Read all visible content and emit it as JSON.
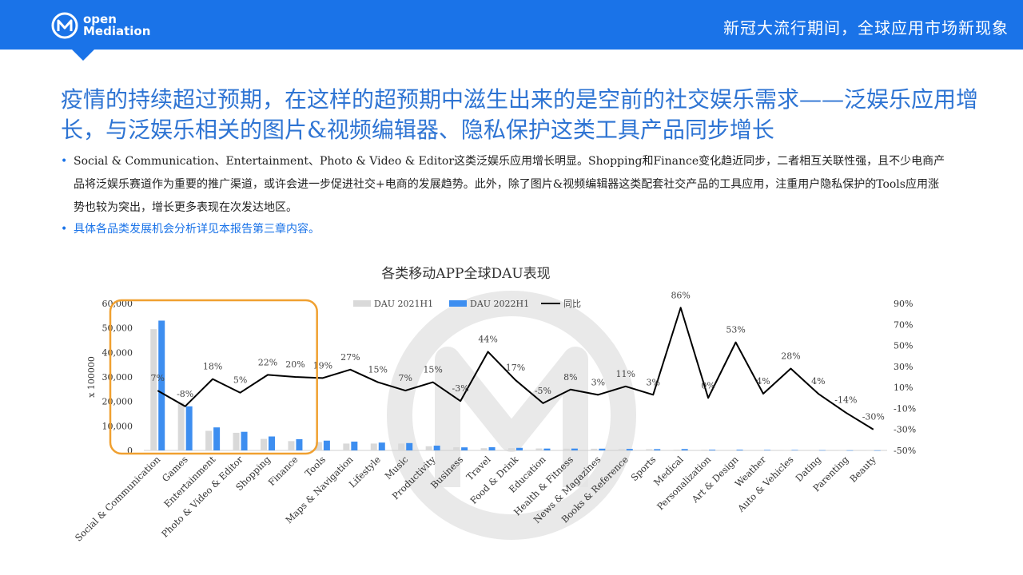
{
  "header": {
    "logo_line1": "open",
    "logo_line2": "Mediation",
    "title": "新冠大流行期间，全球应用市场新现象"
  },
  "headline": "疫情的持续超过预期，在这样的超预期中滋生出来的是空前的社交娱乐需求——泛娱乐应用增长，与泛娱乐相关的图片&视频编辑器、隐私保护这类工具产品同步增长",
  "bullets": [
    "Social & Communication、Entertainment、Photo & Video & Editor这类泛娱乐应用增长明显。Shopping和Finance变化趋近同步，二者相互关联性强，且不少电商产品将泛娱乐赛道作为重要的推广渠道，或许会进一步促进社交+电商的发展趋势。此外，除了图片&视频编辑器这类配套社交产品的工具应用，注重用户隐私保护的Tools应用涨势也较为突出，增长更多表现在次发达地区。",
    "具体各品类发展机会分析详见本报告第三章内容。"
  ],
  "colors": {
    "brand": "#1a73e8",
    "headline": "#2e74d3",
    "series_2021": "#d9d9d9",
    "series_2022": "#3d8ef0",
    "yoy_line": "#000000",
    "highlight_box": "#f0a030"
  },
  "chart_data": {
    "type": "bar",
    "title": "各类移动APP全球DAU表现",
    "ylabel": "x 100000",
    "ylim": [
      0,
      60000
    ],
    "y_ticks": [
      "0",
      "10,000",
      "20,000",
      "30,000",
      "40,000",
      "50,000",
      "60,000"
    ],
    "y2lim": [
      -50,
      90
    ],
    "y2_ticks": [
      "-50%",
      "-30%",
      "-10%",
      "10%",
      "30%",
      "50%",
      "70%",
      "90%"
    ],
    "legend_position": "top",
    "categories": [
      "Social & Communication",
      "Games",
      "Entertainment",
      "Photo & Video & Editor",
      "Shopping",
      "Finance",
      "Tools",
      "Maps & Navigation",
      "Lifestyle",
      "Music",
      "Productivity",
      "Business",
      "Travel",
      "Food & Drink",
      "Education",
      "Health & Fitness",
      "News & Magazines",
      "Books & Reference",
      "Sports",
      "Medical",
      "Personalization",
      "Art & Design",
      "Weather",
      "Auto & Vehicles",
      "Dating",
      "Parenting",
      "Beauty"
    ],
    "series": [
      {
        "name": "DAU 2021H1",
        "kind": "bar",
        "values": [
          49500,
          19500,
          8000,
          7200,
          4700,
          3800,
          3400,
          2800,
          2800,
          2800,
          1700,
          1300,
          900,
          900,
          800,
          700,
          700,
          550,
          500,
          300,
          300,
          200,
          200,
          150,
          100,
          60,
          50
        ]
      },
      {
        "name": "DAU 2022H1",
        "kind": "bar",
        "values": [
          53000,
          18000,
          9400,
          7600,
          5700,
          4600,
          4000,
          3600,
          3200,
          3000,
          1950,
          1250,
          1300,
          1050,
          760,
          760,
          720,
          610,
          520,
          560,
          300,
          300,
          210,
          190,
          100,
          50,
          35
        ]
      },
      {
        "name": "同比",
        "kind": "line",
        "values": [
          7,
          -8,
          18,
          5,
          22,
          20,
          19,
          27,
          15,
          7,
          15,
          -3,
          44,
          17,
          -5,
          8,
          3,
          11,
          3,
          86,
          0,
          53,
          4,
          28,
          4,
          -14,
          -30
        ],
        "labels": [
          "7%",
          "-8%",
          "18%",
          "5%",
          "22%",
          "20%",
          "19%",
          "27%",
          "15%",
          "7%",
          "15%",
          "-3%",
          "44%",
          "17%",
          "-5%",
          "8%",
          "3%",
          "11%",
          "3%",
          "86%",
          "0%",
          "53%",
          "4%",
          "28%",
          "4%",
          "-14%",
          "-30%"
        ]
      }
    ],
    "highlight_categories": [
      "Social & Communication",
      "Games",
      "Entertainment",
      "Photo & Video & Editor",
      "Shopping",
      "Finance"
    ]
  }
}
